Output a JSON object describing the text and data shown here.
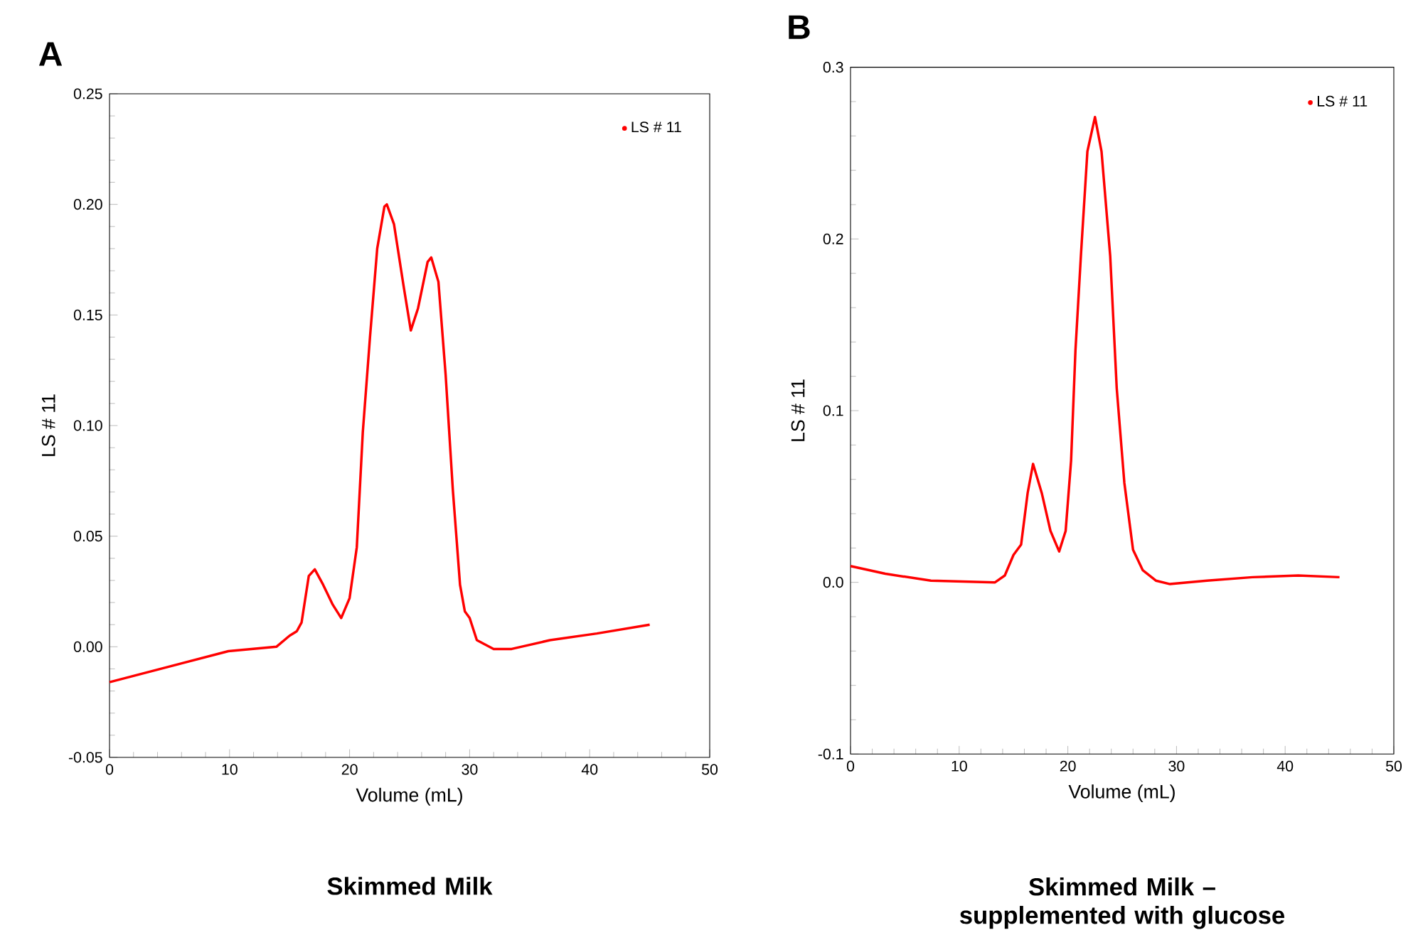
{
  "chart_data": [
    {
      "type": "line",
      "title": "A",
      "xlabel": "Volume (mL)",
      "ylabel": "LS # 11",
      "annotations": [
        "Skimmed Milk"
      ],
      "legend": "top right",
      "grid": false,
      "marker": "none",
      "line_style": "solid",
      "xlim": [
        0,
        50
      ],
      "xticks": [
        0,
        10,
        20,
        30,
        40,
        50
      ],
      "ylim": [
        -0.05,
        0.25
      ],
      "yticks": [
        -0.05,
        {
          "value": 0,
          "label": "0.00"
        },
        0.05,
        {
          "value": 0.1,
          "label": "0.10"
        },
        0.15,
        {
          "value": 0.2,
          "label": "0.20"
        },
        0.25
      ],
      "series": [
        {
          "name": "LS # 11",
          "color": "#ff0000",
          "x": [
            0,
            9.9,
            13.9,
            15.0,
            15.6,
            16.0,
            16.6,
            17.1,
            17.8,
            18.6,
            19.3,
            20.0,
            20.6,
            21.1,
            21.7,
            22.3,
            22.9,
            23.1,
            23.7,
            24.5,
            25.1,
            25.7,
            26.5,
            26.8,
            27.4,
            28.0,
            28.6,
            29.2,
            29.6,
            30.0,
            30.6,
            32.0,
            33.5,
            36.7,
            40.6,
            45.0
          ],
          "values": [
            -0.016,
            -0.002,
            0.0,
            0.005,
            0.007,
            0.011,
            0.032,
            0.035,
            0.028,
            0.019,
            0.013,
            0.022,
            0.045,
            0.097,
            0.14,
            0.18,
            0.199,
            0.2,
            0.191,
            0.163,
            0.143,
            0.153,
            0.174,
            0.176,
            0.165,
            0.123,
            0.071,
            0.028,
            0.016,
            0.013,
            0.003,
            -0.001,
            -0.001,
            0.003,
            0.006,
            0.01
          ]
        }
      ]
    },
    {
      "type": "line",
      "title": "B",
      "xlabel": "Volume (mL)",
      "ylabel": "LS # 11",
      "annotations": [
        "Skimmed Milk – supplemented with glucose"
      ],
      "legend": "top right",
      "grid": false,
      "marker": "none",
      "line_style": "solid",
      "xlim": [
        0,
        50
      ],
      "xticks": [
        0,
        10,
        20,
        30,
        40,
        50
      ],
      "ylim": [
        -0.1,
        0.3
      ],
      "yticks": [
        -0.1,
        {
          "value": 0,
          "label": "0.0"
        },
        0.1,
        0.2,
        0.3
      ],
      "series": [
        {
          "name": "LS # 11",
          "color": "#ff0000",
          "x": [
            0,
            3.2,
            7.4,
            13.3,
            14.2,
            15.0,
            15.7,
            16.3,
            16.8,
            17.6,
            18.4,
            19.2,
            19.8,
            20.3,
            20.7,
            21.2,
            21.8,
            22.5,
            23.1,
            23.9,
            24.5,
            25.2,
            26.0,
            26.9,
            28.1,
            29.4,
            32.8,
            37.0,
            41.2,
            45.0
          ],
          "values": [
            0.0095,
            0.005,
            0.001,
            0.0,
            0.004,
            0.016,
            0.022,
            0.052,
            0.069,
            0.052,
            0.03,
            0.018,
            0.03,
            0.071,
            0.135,
            0.19,
            0.251,
            0.271,
            0.251,
            0.19,
            0.113,
            0.058,
            0.019,
            0.007,
            0.001,
            -0.001,
            0.001,
            0.003,
            0.004,
            0.003
          ]
        }
      ]
    }
  ]
}
